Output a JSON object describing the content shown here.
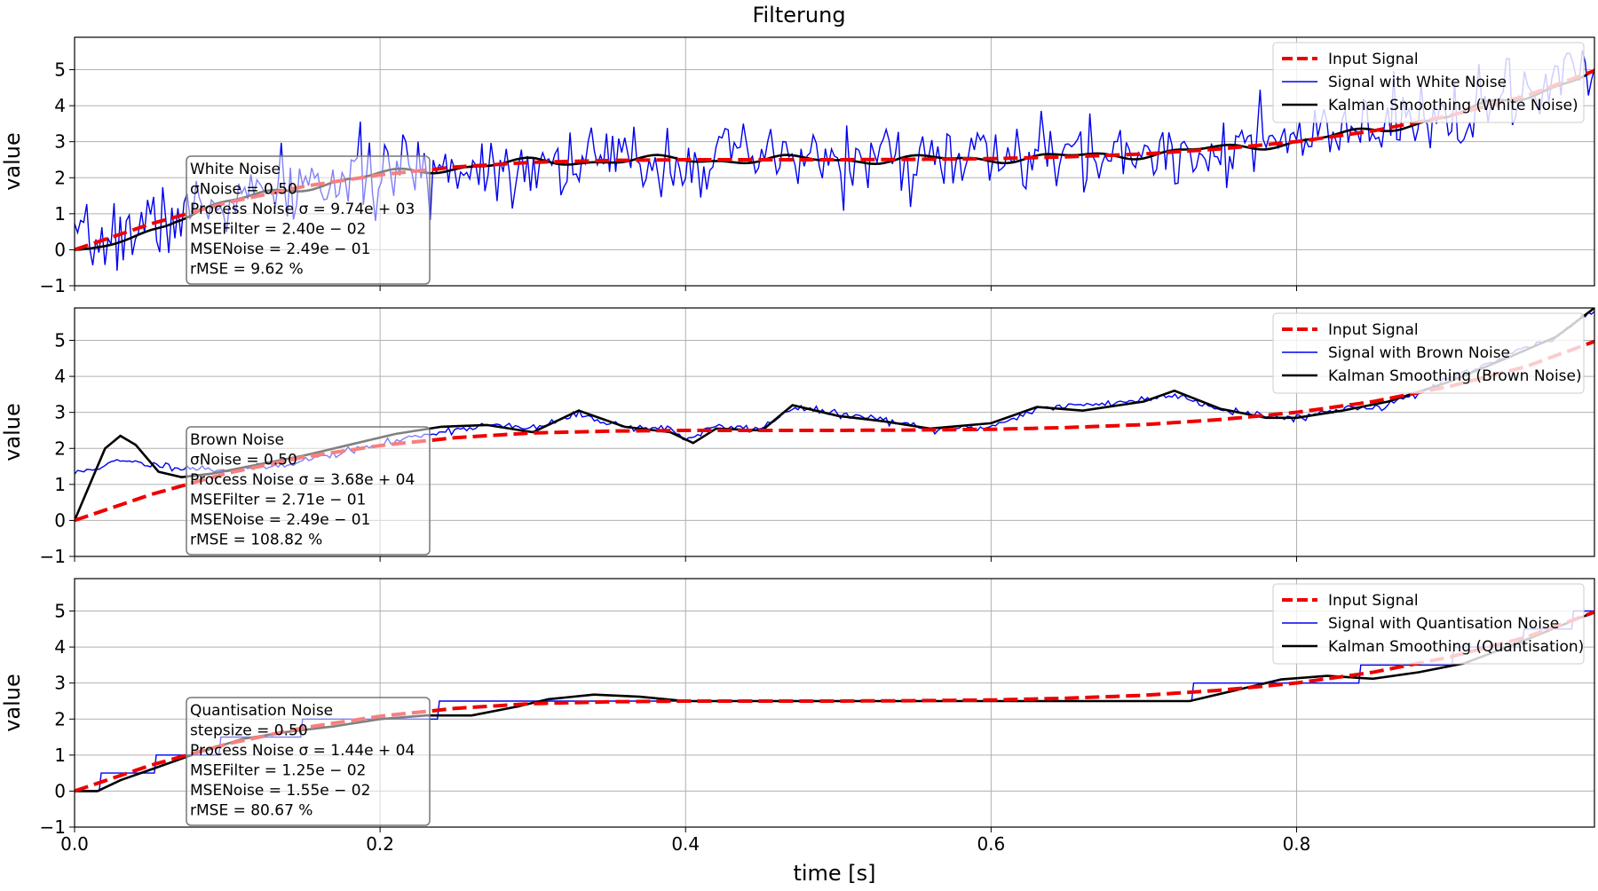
{
  "figure": {
    "title": "Filterung"
  },
  "chart_data": [
    {
      "type": "line",
      "xlabel": "",
      "ylabel": "value",
      "xlim": [
        0,
        0.995
      ],
      "ylim": [
        -1,
        5.9
      ],
      "xticks": [
        0,
        0.2,
        0.4,
        0.6,
        0.8
      ],
      "xticklabels": [
        "",
        "",
        "",
        "",
        ""
      ],
      "yticks": [
        -1,
        0,
        1,
        2,
        3,
        4,
        5
      ],
      "yticklabels": [
        "−1",
        "0",
        "1",
        "2",
        "3",
        "4",
        "5"
      ],
      "grid": true,
      "legend_position": "top-right",
      "signal": {
        "x": [
          0,
          0.05,
          0.1,
          0.15,
          0.2,
          0.25,
          0.3,
          0.35,
          0.4,
          0.45,
          0.5,
          0.55,
          0.6,
          0.65,
          0.7,
          0.75,
          0.8,
          0.85,
          0.9,
          0.95,
          0.995
        ],
        "y": [
          0,
          0.72,
          1.31,
          1.76,
          2.08,
          2.3,
          2.43,
          2.48,
          2.5,
          2.5,
          2.5,
          2.51,
          2.53,
          2.58,
          2.66,
          2.8,
          3.0,
          3.3,
          3.72,
          4.27,
          4.97
        ]
      },
      "noise": {
        "kind": "white",
        "sigma": 0.5,
        "seed": 7
      },
      "series": [
        {
          "name": "Input Signal",
          "color": "#ee0000",
          "style": "dashed"
        },
        {
          "name": "Signal with White Noise",
          "color": "#0000ee",
          "style": "solid"
        },
        {
          "name": "Kalman Smoothing (White Noise)",
          "color": "#000000",
          "style": "solid"
        }
      ],
      "annotation": [
        "White Noise",
        "σNoise = 0.50",
        "Process Noise σ = 9.74e + 03",
        "MSEFilter = 2.40e − 02",
        "MSENoise = 2.49e − 01",
        "rMSE = 9.62 %"
      ]
    },
    {
      "type": "line",
      "xlabel": "",
      "ylabel": "value",
      "xlim": [
        0,
        0.995
      ],
      "ylim": [
        -1,
        5.9
      ],
      "xticks": [
        0,
        0.2,
        0.4,
        0.6,
        0.8
      ],
      "xticklabels": [
        "",
        "",
        "",
        "",
        ""
      ],
      "yticks": [
        -1,
        0,
        1,
        2,
        3,
        4,
        5
      ],
      "yticklabels": [
        "−1",
        "0",
        "1",
        "2",
        "3",
        "4",
        "5"
      ],
      "grid": true,
      "legend_position": "top-right",
      "signal": {
        "x": [
          0,
          0.05,
          0.1,
          0.15,
          0.2,
          0.25,
          0.3,
          0.35,
          0.4,
          0.45,
          0.5,
          0.55,
          0.6,
          0.65,
          0.7,
          0.75,
          0.8,
          0.85,
          0.9,
          0.95,
          0.995
        ],
        "y": [
          0,
          0.72,
          1.31,
          1.76,
          2.08,
          2.3,
          2.43,
          2.48,
          2.5,
          2.5,
          2.5,
          2.51,
          2.53,
          2.58,
          2.66,
          2.8,
          3.0,
          3.3,
          3.72,
          4.27,
          4.97
        ]
      },
      "noisy": {
        "x": [
          0,
          0.03,
          0.05,
          0.08,
          0.1,
          0.13,
          0.16,
          0.2,
          0.23,
          0.27,
          0.3,
          0.33,
          0.36,
          0.39,
          0.4,
          0.42,
          0.45,
          0.47,
          0.5,
          0.53,
          0.56,
          0.6,
          0.63,
          0.66,
          0.7,
          0.72,
          0.75,
          0.78,
          0.8,
          0.83,
          0.86,
          0.9,
          0.94,
          0.97,
          0.995
        ],
        "y": [
          1.3,
          1.65,
          1.55,
          1.45,
          1.4,
          1.5,
          1.75,
          2.1,
          2.4,
          2.65,
          2.55,
          2.95,
          2.6,
          2.55,
          2.25,
          2.6,
          2.55,
          3.15,
          2.95,
          2.8,
          2.5,
          2.6,
          3.1,
          3.2,
          3.35,
          3.5,
          3.1,
          2.9,
          2.85,
          3.1,
          3.2,
          3.9,
          4.6,
          5.1,
          5.9
        ]
      },
      "smooth": {
        "x": [
          0,
          0.01,
          0.02,
          0.03,
          0.04,
          0.055,
          0.07,
          0.09,
          0.12,
          0.15,
          0.18,
          0.21,
          0.24,
          0.27,
          0.3,
          0.33,
          0.36,
          0.39,
          0.405,
          0.42,
          0.45,
          0.47,
          0.5,
          0.53,
          0.56,
          0.6,
          0.63,
          0.66,
          0.7,
          0.72,
          0.75,
          0.78,
          0.8,
          0.83,
          0.86,
          0.9,
          0.94,
          0.97,
          0.995
        ],
        "y": [
          0,
          1.0,
          2.0,
          2.35,
          2.1,
          1.35,
          1.2,
          1.3,
          1.55,
          1.8,
          2.1,
          2.4,
          2.6,
          2.65,
          2.45,
          3.05,
          2.6,
          2.45,
          2.15,
          2.55,
          2.5,
          3.2,
          2.9,
          2.75,
          2.55,
          2.7,
          3.15,
          3.05,
          3.3,
          3.6,
          3.1,
          2.85,
          2.85,
          3.05,
          3.3,
          3.85,
          4.55,
          5.1,
          5.9
        ]
      },
      "series": [
        {
          "name": "Input Signal",
          "color": "#ee0000",
          "style": "dashed"
        },
        {
          "name": "Signal with Brown Noise",
          "color": "#0000ee",
          "style": "solid"
        },
        {
          "name": "Kalman Smoothing (Brown Noise)",
          "color": "#000000",
          "style": "solid"
        }
      ],
      "annotation": [
        "Brown Noise",
        "σNoise = 0.50",
        "Process Noise σ = 3.68e + 04",
        "MSEFilter = 2.71e − 01",
        "MSENoise = 2.49e − 01",
        "rMSE = 108.82 %"
      ]
    },
    {
      "type": "line",
      "xlabel": "time [s]",
      "ylabel": "value",
      "xlim": [
        0,
        0.995
      ],
      "ylim": [
        -1,
        5.9
      ],
      "xticks": [
        0,
        0.2,
        0.4,
        0.6,
        0.8
      ],
      "xticklabels": [
        "0.0",
        "0.2",
        "0.4",
        "0.6",
        "0.8"
      ],
      "yticks": [
        -1,
        0,
        1,
        2,
        3,
        4,
        5
      ],
      "yticklabels": [
        "−1",
        "0",
        "1",
        "2",
        "3",
        "4",
        "5"
      ],
      "grid": true,
      "legend_position": "top-right",
      "signal": {
        "x": [
          0,
          0.05,
          0.1,
          0.15,
          0.2,
          0.25,
          0.3,
          0.35,
          0.4,
          0.45,
          0.5,
          0.55,
          0.6,
          0.65,
          0.7,
          0.75,
          0.8,
          0.85,
          0.9,
          0.95,
          0.995
        ],
        "y": [
          0,
          0.72,
          1.31,
          1.76,
          2.08,
          2.3,
          2.43,
          2.48,
          2.5,
          2.5,
          2.5,
          2.51,
          2.53,
          2.58,
          2.66,
          2.8,
          3.0,
          3.3,
          3.72,
          4.27,
          4.97
        ]
      },
      "quantisation": {
        "stepsize": 0.5
      },
      "smooth": {
        "x": [
          0,
          0.015,
          0.03,
          0.05,
          0.08,
          0.11,
          0.14,
          0.17,
          0.2,
          0.23,
          0.26,
          0.29,
          0.31,
          0.34,
          0.37,
          0.4,
          0.45,
          0.5,
          0.55,
          0.6,
          0.65,
          0.7,
          0.73,
          0.76,
          0.79,
          0.82,
          0.85,
          0.88,
          0.91,
          0.95,
          0.995
        ],
        "y": [
          0,
          0.0,
          0.3,
          0.6,
          1.05,
          1.45,
          1.65,
          1.8,
          2.0,
          2.1,
          2.1,
          2.35,
          2.55,
          2.68,
          2.62,
          2.5,
          2.5,
          2.5,
          2.5,
          2.5,
          2.5,
          2.5,
          2.5,
          2.8,
          3.1,
          3.2,
          3.12,
          3.3,
          3.55,
          4.2,
          4.97
        ]
      },
      "series": [
        {
          "name": "Input Signal",
          "color": "#ee0000",
          "style": "dashed"
        },
        {
          "name": "Signal with Quantisation Noise",
          "color": "#0000ee",
          "style": "solid"
        },
        {
          "name": "Kalman Smoothing (Quantisation)",
          "color": "#000000",
          "style": "solid"
        }
      ],
      "annotation": [
        "Quantisation Noise",
        "stepsize = 0.50",
        "Process Noise σ = 1.44e + 04",
        "MSEFilter = 1.25e − 02",
        "MSENoise = 1.55e − 02",
        "rMSE = 80.67 %"
      ]
    }
  ]
}
